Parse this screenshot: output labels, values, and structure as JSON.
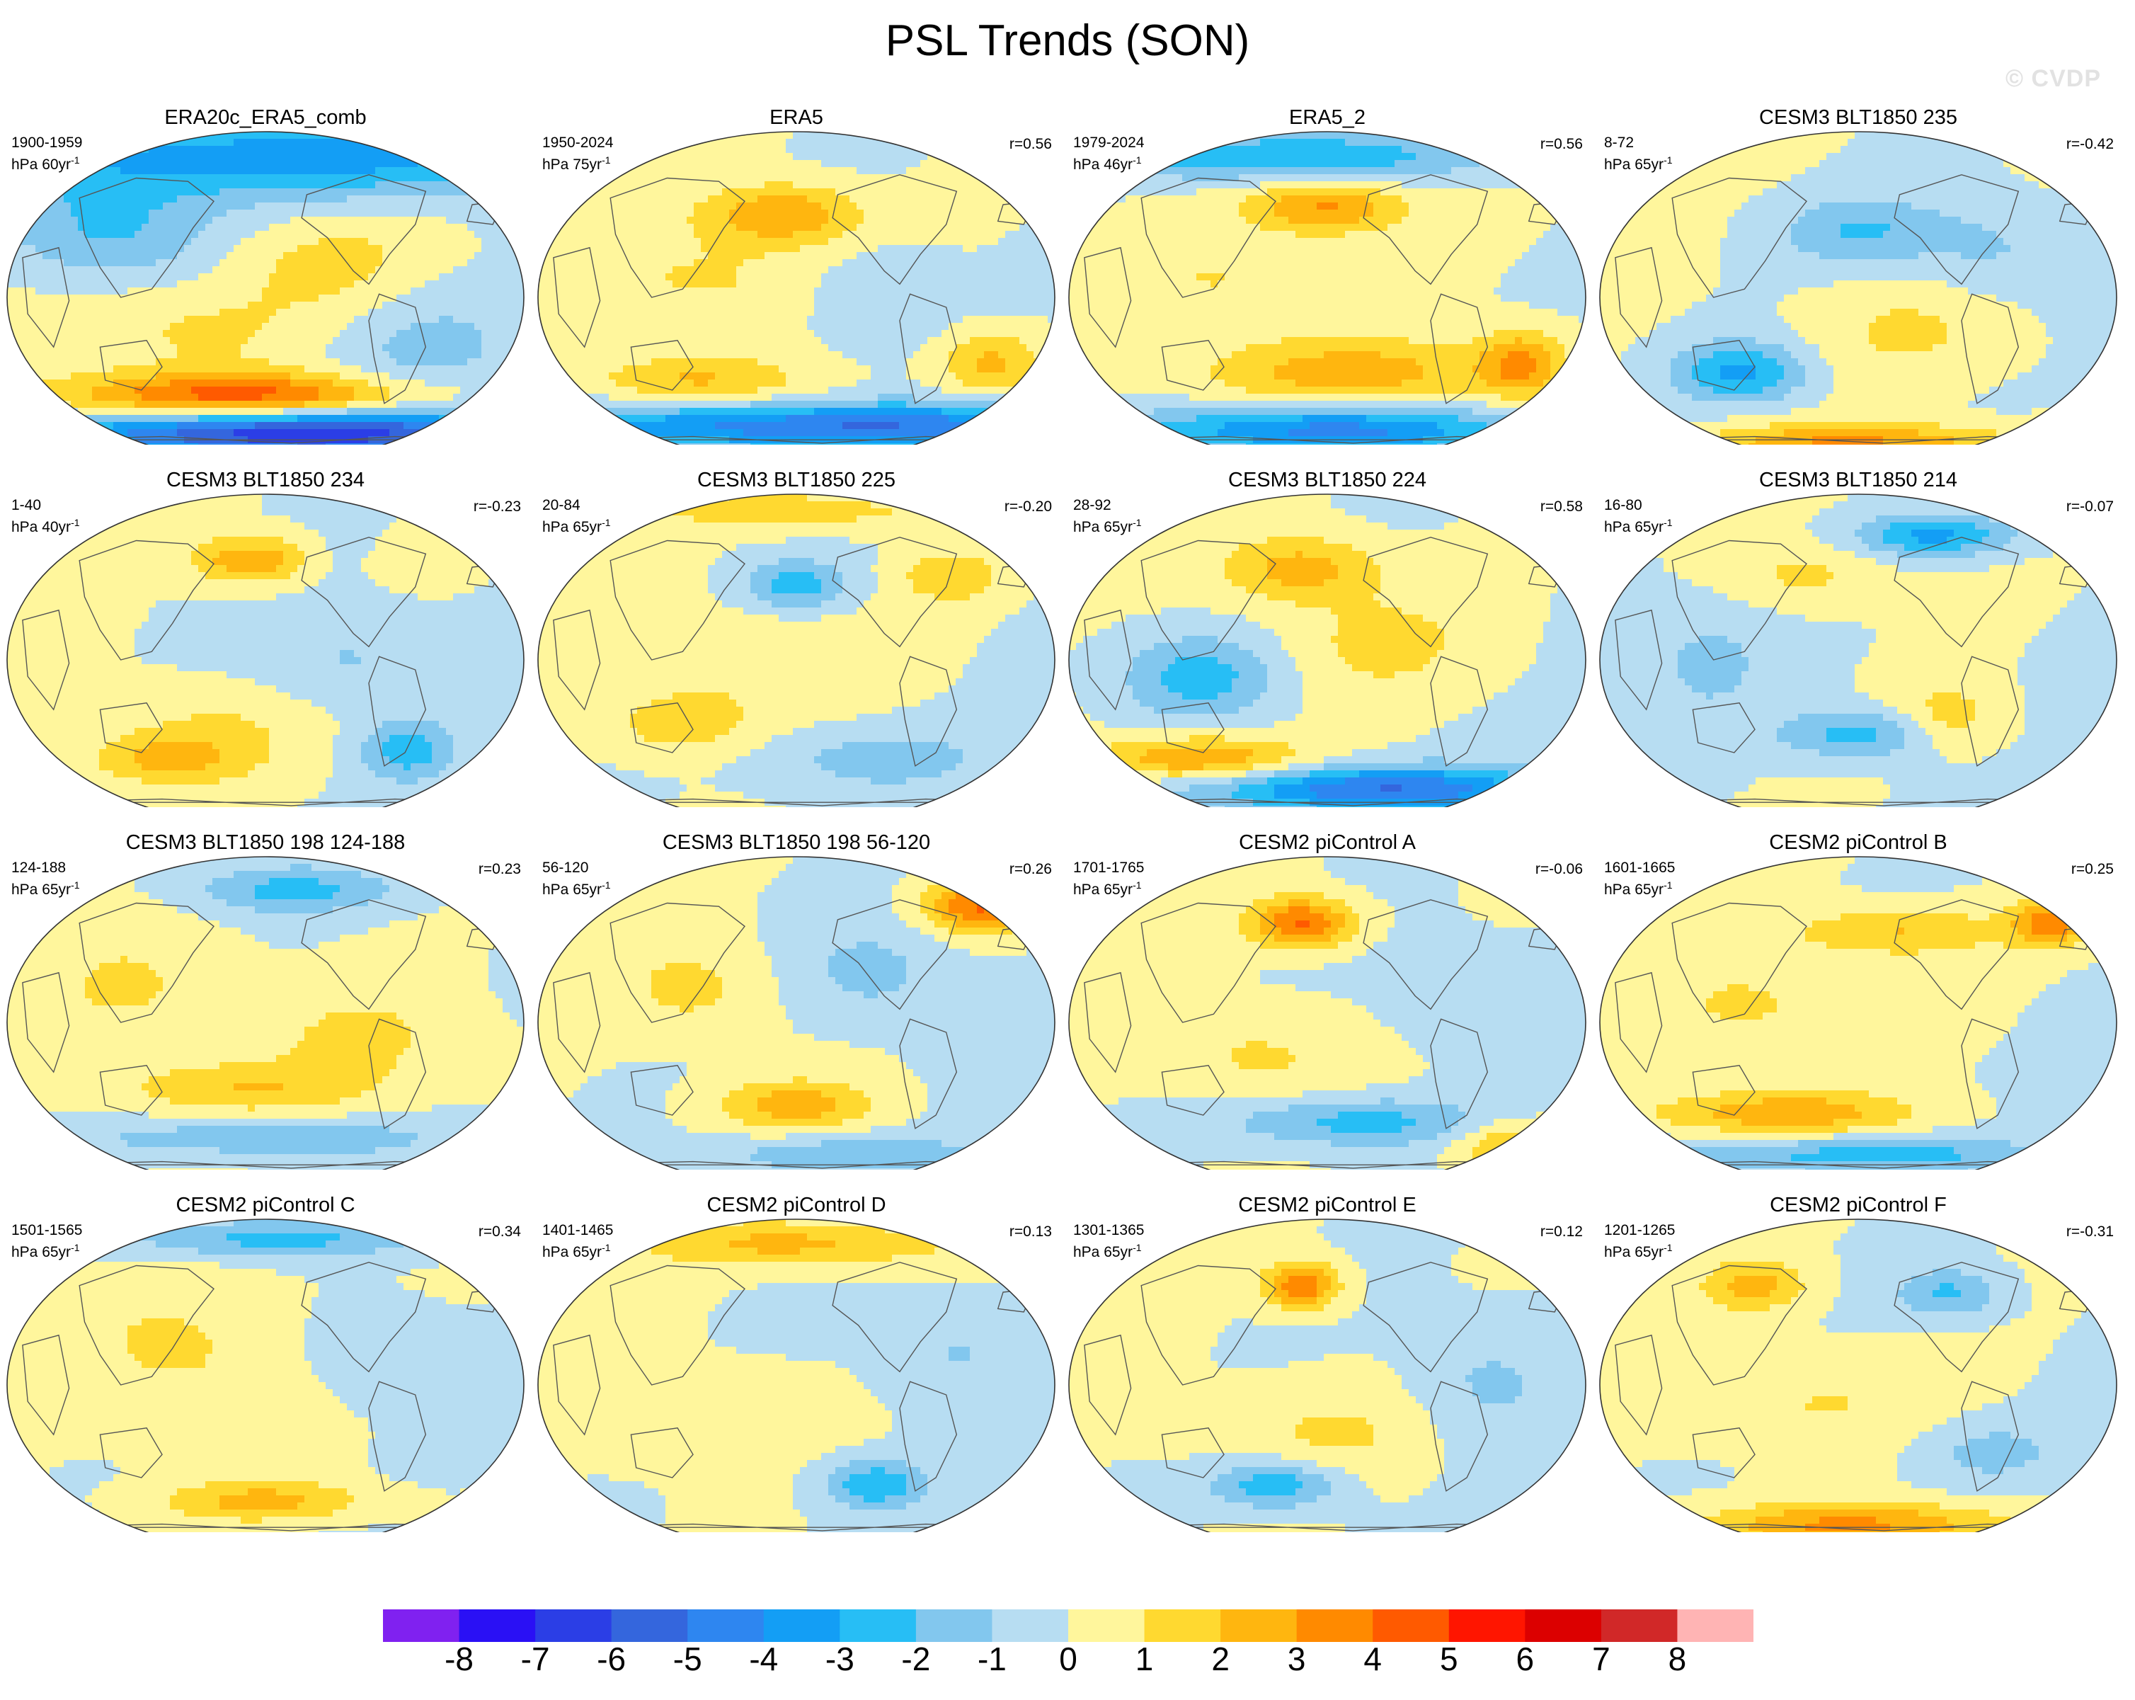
{
  "title": "PSL Trends (SON)",
  "watermark": "© CVDP",
  "palette": [
    "#8021f0",
    "#2a10f5",
    "#2b3ee6",
    "#3466dd",
    "#2e86f0",
    "#139ef5",
    "#27bef5",
    "#82c7ee",
    "#b7ddf2",
    "#fff69c",
    "#ffd930",
    "#ffb60f",
    "#ff8a00",
    "#ff5a00",
    "#ff1500",
    "#dc0000",
    "#d12828",
    "#ffb4b4"
  ],
  "panels": [
    {
      "title": "ERA20c_ERA5_comb",
      "years": "1900-1959",
      "units": "hPa 60yr",
      "units_sup": "-1",
      "r": ""
    },
    {
      "title": "ERA5",
      "years": "1950-2024",
      "units": "hPa 75yr",
      "units_sup": "-1",
      "r": "r=0.56"
    },
    {
      "title": "ERA5_2",
      "years": "1979-2024",
      "units": "hPa 46yr",
      "units_sup": "-1",
      "r": "r=0.56"
    },
    {
      "title": "CESM3 BLT1850 235",
      "years": "8-72",
      "units": "hPa 65yr",
      "units_sup": "-1",
      "r": "r=-0.42"
    },
    {
      "title": "CESM3 BLT1850 234",
      "years": "1-40",
      "units": "hPa 40yr",
      "units_sup": "-1",
      "r": "r=-0.23"
    },
    {
      "title": "CESM3 BLT1850 225",
      "years": "20-84",
      "units": "hPa 65yr",
      "units_sup": "-1",
      "r": "r=-0.20"
    },
    {
      "title": "CESM3 BLT1850 224",
      "years": "28-92",
      "units": "hPa 65yr",
      "units_sup": "-1",
      "r": "r=0.58"
    },
    {
      "title": "CESM3 BLT1850 214",
      "years": "16-80",
      "units": "hPa 65yr",
      "units_sup": "-1",
      "r": "r=-0.07"
    },
    {
      "title": "CESM3 BLT1850 198 124-188",
      "years": "124-188",
      "units": "hPa 65yr",
      "units_sup": "-1",
      "r": "r=0.23"
    },
    {
      "title": "CESM3 BLT1850 198 56-120",
      "years": "56-120",
      "units": "hPa 65yr",
      "units_sup": "-1",
      "r": "r=0.26"
    },
    {
      "title": "CESM2 piControl A",
      "years": "1701-1765",
      "units": "hPa 65yr",
      "units_sup": "-1",
      "r": "r=-0.06"
    },
    {
      "title": "CESM2 piControl B",
      "years": "1601-1665",
      "units": "hPa 65yr",
      "units_sup": "-1",
      "r": "r=0.25"
    },
    {
      "title": "CESM2 piControl C",
      "years": "1501-1565",
      "units": "hPa 65yr",
      "units_sup": "-1",
      "r": "r=0.34"
    },
    {
      "title": "CESM2 piControl D",
      "years": "1401-1465",
      "units": "hPa 65yr",
      "units_sup": "-1",
      "r": "r=0.13"
    },
    {
      "title": "CESM2 piControl E",
      "years": "1301-1365",
      "units": "hPa 65yr",
      "units_sup": "-1",
      "r": "r=0.12"
    },
    {
      "title": "CESM2 piControl F",
      "years": "1201-1265",
      "units": "hPa 65yr",
      "units_sup": "-1",
      "r": "r=-0.31"
    }
  ],
  "colorbar": {
    "labels": [
      "-8",
      "-7",
      "-6",
      "-5",
      "-4",
      "-3",
      "-2",
      "-1",
      "0",
      "1",
      "2",
      "3",
      "4",
      "5",
      "6",
      "7",
      "8"
    ]
  }
}
